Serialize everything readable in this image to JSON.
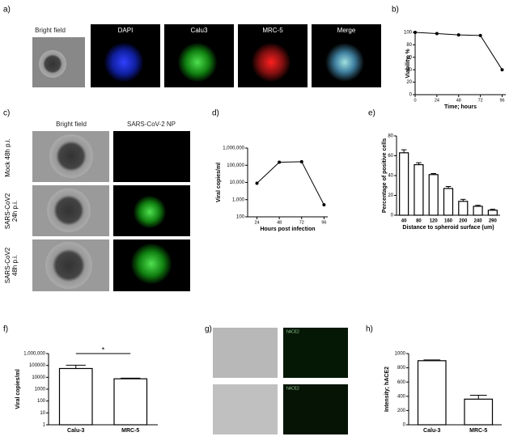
{
  "panel_labels": [
    "a)",
    "b)",
    "c)",
    "d)",
    "e)",
    "f)",
    "g)",
    "h)"
  ],
  "panel_a": {
    "columns": [
      "Bright field",
      "DAPI",
      "Calu3",
      "MRC-5",
      "Merge"
    ]
  },
  "panel_c": {
    "columns": [
      "Bright field",
      "SARS-CoV-2 NP"
    ],
    "rows": [
      "Mock 48h p.i.",
      "SARS-CoV2 24h p.i.",
      "SARS-CoV2 48h p.i."
    ]
  },
  "panel_g": {
    "labels": [
      "hACE2",
      "hACE2"
    ]
  },
  "chart_data": [
    {
      "type": "line",
      "x": [
        0,
        24,
        48,
        72,
        96
      ],
      "values": [
        100,
        98,
        96,
        95,
        40
      ],
      "color": "#000000",
      "xlim": [
        0,
        100
      ],
      "xticks": [
        0,
        24,
        48,
        72,
        96
      ],
      "ylim": [
        0,
        100
      ],
      "yticks": [
        0,
        20,
        40,
        60,
        80,
        100
      ],
      "xlabel": "Time; hours",
      "ylabel": "Viability, %"
    },
    {
      "type": "line",
      "x": [
        24,
        48,
        72,
        96
      ],
      "values": [
        9000,
        150000,
        160000,
        500
      ],
      "color": "#000000",
      "xlim": [
        14,
        100
      ],
      "xticks": [
        24,
        48,
        72,
        96
      ],
      "log_y": true,
      "ylim": [
        100,
        1000000
      ],
      "yticks": [
        100,
        {
          "value": 1000,
          "label": "1,000"
        },
        {
          "value": 10000,
          "label": "10,000"
        },
        {
          "value": 100000,
          "label": "100,000"
        },
        {
          "value": 1000000,
          "label": "1,000,000"
        }
      ],
      "xlabel": "Hours post infection",
      "ylabel": "Viral copies/ml"
    },
    {
      "type": "bar",
      "categories": [
        "40",
        "80",
        "120",
        "160",
        "200",
        "240",
        "290"
      ],
      "values": [
        63,
        51,
        41,
        27,
        14,
        9,
        5
      ],
      "errors": [
        3,
        2,
        1,
        2,
        2,
        1,
        1
      ],
      "color": "#ffffff",
      "ylim": [
        0,
        80
      ],
      "yticks": [
        0,
        20,
        40,
        60,
        80
      ],
      "xlabel": "Distance to spheroid surface (um)",
      "ylabel": "Percentage of positive cells"
    },
    {
      "type": "bar",
      "categories": [
        "Calu-3",
        "MRC-5"
      ],
      "values": [
        55000,
        7500
      ],
      "errors": [
        50000,
        1000
      ],
      "color": "#ffffff",
      "log_y": true,
      "ylim": [
        1,
        1000000
      ],
      "yticks": [
        1,
        10,
        100,
        1000,
        10000,
        100000,
        {
          "value": 1000000,
          "label": "1,000,000"
        }
      ],
      "ylabel": "Viral copies/ml",
      "annotation": "*"
    },
    {
      "type": "bar",
      "categories": [
        "Calu-3",
        "MRC-5"
      ],
      "values": [
        900,
        360
      ],
      "errors": [
        10,
        55
      ],
      "color": "#ffffff",
      "ylim": [
        0,
        1000
      ],
      "yticks": [
        0,
        200,
        400,
        600,
        800,
        1000
      ],
      "ylabel": "Intensity; hACE2"
    }
  ]
}
